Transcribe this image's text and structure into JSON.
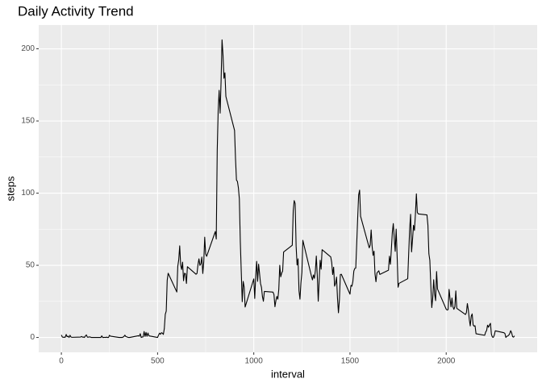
{
  "chart_data": {
    "type": "line",
    "title": "Daily Activity Trend",
    "xlabel": "interval",
    "ylabel": "steps",
    "x": [
      0,
      5,
      10,
      15,
      20,
      25,
      30,
      35,
      40,
      45,
      50,
      55,
      100,
      105,
      110,
      115,
      120,
      125,
      130,
      135,
      140,
      145,
      150,
      155,
      200,
      205,
      210,
      215,
      220,
      225,
      230,
      235,
      240,
      245,
      250,
      255,
      300,
      305,
      310,
      315,
      320,
      325,
      330,
      335,
      340,
      345,
      350,
      355,
      400,
      405,
      410,
      415,
      420,
      425,
      430,
      435,
      440,
      445,
      450,
      455,
      500,
      505,
      510,
      515,
      520,
      525,
      530,
      535,
      540,
      545,
      550,
      555,
      600,
      605,
      610,
      615,
      620,
      625,
      630,
      635,
      640,
      645,
      650,
      655,
      700,
      705,
      710,
      715,
      720,
      725,
      730,
      735,
      740,
      745,
      750,
      755,
      800,
      805,
      810,
      815,
      820,
      825,
      830,
      835,
      840,
      845,
      850,
      855,
      900,
      905,
      910,
      915,
      920,
      925,
      930,
      935,
      940,
      945,
      950,
      955,
      1000,
      1005,
      1010,
      1015,
      1020,
      1025,
      1030,
      1035,
      1040,
      1045,
      1050,
      1055,
      1100,
      1105,
      1110,
      1115,
      1120,
      1125,
      1130,
      1135,
      1140,
      1145,
      1150,
      1155,
      1200,
      1205,
      1210,
      1215,
      1220,
      1225,
      1230,
      1235,
      1240,
      1245,
      1250,
      1255,
      1300,
      1305,
      1310,
      1315,
      1320,
      1325,
      1330,
      1335,
      1340,
      1345,
      1350,
      1355,
      1400,
      1405,
      1410,
      1415,
      1420,
      1425,
      1430,
      1435,
      1440,
      1445,
      1450,
      1455,
      1500,
      1505,
      1510,
      1515,
      1520,
      1525,
      1530,
      1535,
      1540,
      1545,
      1550,
      1555,
      1600,
      1605,
      1610,
      1615,
      1620,
      1625,
      1630,
      1635,
      1640,
      1645,
      1650,
      1655,
      1700,
      1705,
      1710,
      1715,
      1720,
      1725,
      1730,
      1735,
      1740,
      1745,
      1750,
      1755,
      1800,
      1805,
      1810,
      1815,
      1820,
      1825,
      1830,
      1835,
      1840,
      1845,
      1850,
      1855,
      1900,
      1905,
      1910,
      1915,
      1920,
      1925,
      1930,
      1935,
      1940,
      1945,
      1950,
      1955,
      2000,
      2005,
      2010,
      2015,
      2020,
      2025,
      2030,
      2035,
      2040,
      2045,
      2050,
      2055,
      2100,
      2105,
      2110,
      2115,
      2120,
      2125,
      2130,
      2135,
      2140,
      2145,
      2150,
      2155,
      2200,
      2205,
      2210,
      2215,
      2220,
      2225,
      2230,
      2235,
      2240,
      2245,
      2250,
      2255,
      2300,
      2305,
      2310,
      2315,
      2320,
      2325,
      2330,
      2335,
      2340,
      2345,
      2350,
      2355
    ],
    "series": [
      {
        "name": "steps",
        "color": "#000000",
        "values": [
          1.7,
          0.3,
          0.1,
          0.2,
          0.1,
          2.1,
          0.5,
          0.9,
          0,
          1.5,
          0.3,
          0.1,
          0.3,
          0.7,
          0.2,
          0.3,
          0,
          1.1,
          1.8,
          0.2,
          0.2,
          0.4,
          0.3,
          0,
          0,
          0,
          1.1,
          0,
          0,
          0.1,
          0,
          0.2,
          0,
          0,
          1.5,
          0.9,
          0,
          0,
          0,
          0,
          0.2,
          0.6,
          1.6,
          0.6,
          0.5,
          0.1,
          0,
          0,
          1.2,
          0.9,
          2.6,
          0,
          0.3,
          0.4,
          4.1,
          0.7,
          3.5,
          0.8,
          3.1,
          1.1,
          0,
          1.6,
          3,
          2.2,
          3.3,
          3,
          2.1,
          6.1,
          16,
          18.3,
          39.5,
          44.5,
          31.5,
          49.3,
          53.8,
          63.5,
          50,
          47.1,
          52.2,
          39.3,
          44.5,
          44.2,
          37.4,
          49,
          43.8,
          44.4,
          50.5,
          54.5,
          49.9,
          51,
          55.7,
          44.3,
          52.3,
          69.5,
          57.8,
          56.2,
          73.4,
          68.2,
          129.4,
          157.5,
          171.2,
          155.4,
          177.3,
          206.2,
          195.9,
          179.6,
          183.4,
          167,
          143.5,
          124,
          109.1,
          108.1,
          103.7,
          96,
          66.2,
          45.2,
          24.8,
          38.8,
          35,
          21.1,
          40.6,
          27,
          42.4,
          52.7,
          38.9,
          50.8,
          44.3,
          37.4,
          34.7,
          28.3,
          25.1,
          31.9,
          31.4,
          29.7,
          21.3,
          25.5,
          28.4,
          26.5,
          33.4,
          50,
          42,
          44.6,
          46,
          59.2,
          63.9,
          87.7,
          94.8,
          92.8,
          63.4,
          50.2,
          54.5,
          32.4,
          26.5,
          37.7,
          45.1,
          67.3,
          42.3,
          39.9,
          43.3,
          41,
          46.2,
          56.4,
          42.8,
          25.1,
          40,
          53.5,
          47.3,
          60.8,
          55.8,
          52,
          43.6,
          48.7,
          35.5,
          37.5,
          41.8,
          27.5,
          17.1,
          26.1,
          43.6,
          43.8,
          30,
          36.1,
          35.5,
          38.8,
          46,
          47.8,
          48.1,
          65.3,
          82.9,
          98.7,
          102.1,
          84,
          62.1,
          64.1,
          74.5,
          63.2,
          56.9,
          59.8,
          43.9,
          38.6,
          44.7,
          45.5,
          46.2,
          43.7,
          46.6,
          56.3,
          50.7,
          61.2,
          72.7,
          78.9,
          68.9,
          59.7,
          75.1,
          56.5,
          34.8,
          37.5,
          40.7,
          58,
          74.7,
          85.3,
          59.3,
          67.8,
          77.7,
          74.2,
          85.3,
          99.5,
          86.6,
          85.6,
          84.9,
          77.8,
          58,
          53.4,
          36.3,
          20.7,
          27.4,
          40,
          30.2,
          25.5,
          45.7,
          33.5,
          19.6,
          19,
          19.3,
          33.3,
          26.8,
          21.2,
          27.3,
          21.3,
          19.5,
          21.3,
          32.3,
          20.2,
          15.9,
          17.2,
          23.5,
          19.2,
          12.5,
          8,
          14.7,
          16.3,
          8.7,
          7.8,
          8.1,
          2.6,
          1.5,
          3.7,
          4.8,
          8.5,
          7.1,
          8.7,
          9.8,
          2.2,
          0.3,
          0.1,
          1.6,
          4.6,
          3.3,
          2.8,
          0,
          0.8,
          1,
          1.6,
          2.6,
          4.7,
          3.3,
          0.6,
          0.2,
          1.1
        ]
      }
    ],
    "xlim": [
      -117.75,
      2472.75
    ],
    "xticks": [
      0,
      500,
      1000,
      1500,
      2000
    ],
    "xminorticks": [
      250,
      750,
      1250,
      1750,
      2250
    ],
    "ylim": [
      -10.3,
      216.5
    ],
    "yticks": [
      0,
      50,
      100,
      150,
      200
    ],
    "yminorticks": [
      25,
      75,
      125,
      175
    ],
    "grid": true
  }
}
